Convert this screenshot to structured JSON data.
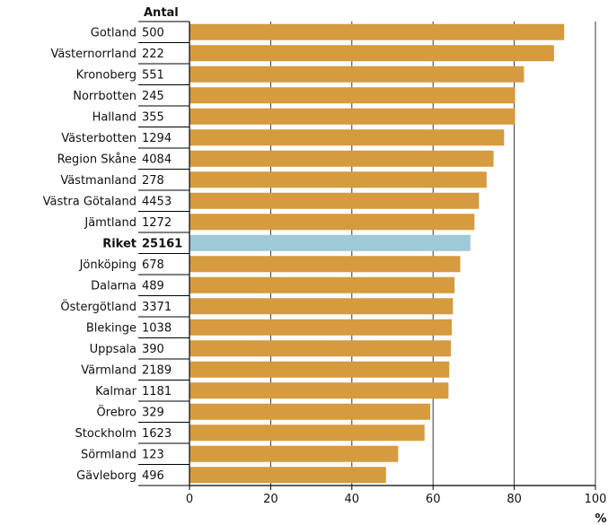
{
  "chart_data": {
    "type": "bar",
    "orientation": "horizontal",
    "count_header": "Antal",
    "unit_label": "%",
    "xlim": [
      0,
      100
    ],
    "xticks": [
      0,
      20,
      40,
      60,
      80,
      100
    ],
    "grid": true,
    "bar_color": "#d69a3f",
    "highlight_color": "#9ec9d6",
    "highlight_category": "Riket",
    "categories": [
      "Gotland",
      "Västernorrland",
      "Kronoberg",
      "Norrbotten",
      "Halland",
      "Västerbotten",
      "Region Skåne",
      "Västmanland",
      "Västra Götaland",
      "Jämtland",
      "Riket",
      "Jönköping",
      "Dalarna",
      "Östergötland",
      "Blekinge",
      "Uppsala",
      "Värmland",
      "Kalmar",
      "Örebro",
      "Stockholm",
      "Sörmland",
      "Gävleborg"
    ],
    "counts": [
      "500",
      "222",
      "551",
      "245",
      "355",
      "1294",
      "4084",
      "278",
      "4453",
      "1272",
      "25161",
      "678",
      "489",
      "3371",
      "1038",
      "390",
      "2189",
      "1181",
      "329",
      "1623",
      "123",
      "496"
    ],
    "values": [
      92.3,
      89.8,
      82.4,
      80.2,
      80.2,
      77.5,
      74.9,
      73.2,
      71.3,
      70.2,
      69.2,
      66.7,
      65.3,
      64.9,
      64.6,
      64.4,
      64.0,
      63.8,
      59.3,
      57.9,
      51.4,
      48.4
    ]
  }
}
